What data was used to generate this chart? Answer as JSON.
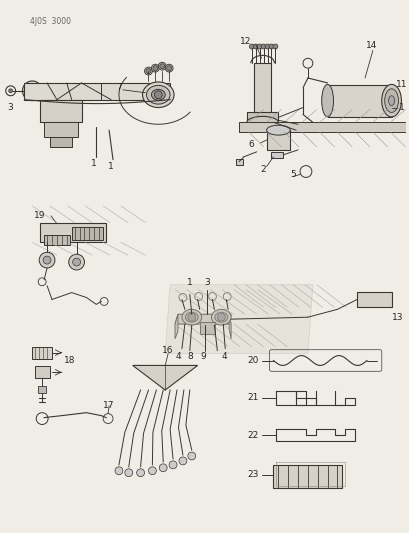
{
  "bg_color": "#f0ede6",
  "line_color": "#3a3530",
  "label_color": "#2a2520",
  "header_text": "4J0S  3000",
  "fig_width": 4.1,
  "fig_height": 5.33,
  "dpi": 100
}
